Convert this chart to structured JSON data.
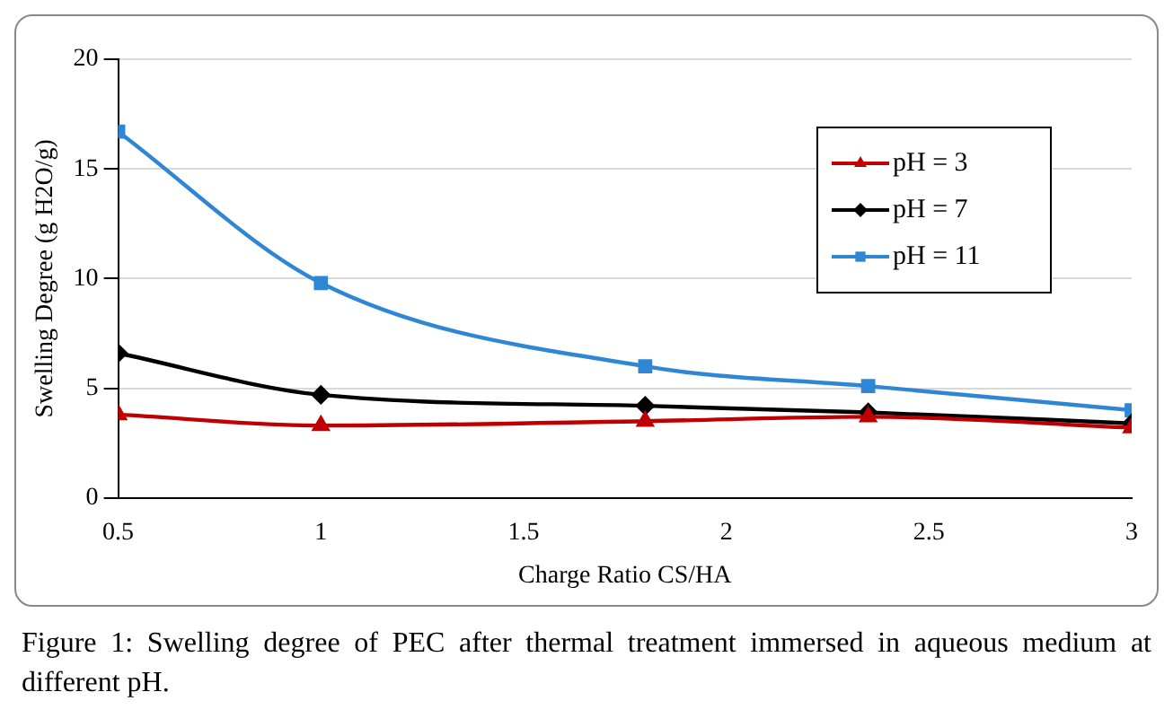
{
  "chart_data": {
    "type": "line",
    "xlabel": "Charge Ratio CS/HA",
    "ylabel": "Swelling Degree (g H2O/g)",
    "x": [
      0.5,
      1,
      1.8,
      2.35,
      3
    ],
    "series": [
      {
        "name": "pH = 3",
        "color": "#c00000",
        "marker": "triangle",
        "values": [
          3.8,
          3.3,
          3.5,
          3.7,
          3.2
        ]
      },
      {
        "name": "pH = 7",
        "color": "#000000",
        "marker": "diamond",
        "values": [
          6.6,
          4.7,
          4.2,
          3.9,
          3.4
        ]
      },
      {
        "name": "pH = 11",
        "color": "#2e86d4",
        "marker": "square",
        "values": [
          16.7,
          9.8,
          6.0,
          5.1,
          4.0
        ]
      }
    ],
    "xlim": [
      0.5,
      3
    ],
    "xticks": [
      0.5,
      1,
      1.5,
      2,
      2.5,
      3
    ],
    "ylim": [
      0,
      20
    ],
    "yticks": [
      0,
      5,
      10,
      15,
      20
    ],
    "grid": "y",
    "legend": "top right",
    "annotations": [
      "Figure 1: Swelling degree of PEC after thermal treatment immersed in aqueous medium at different pH."
    ]
  }
}
